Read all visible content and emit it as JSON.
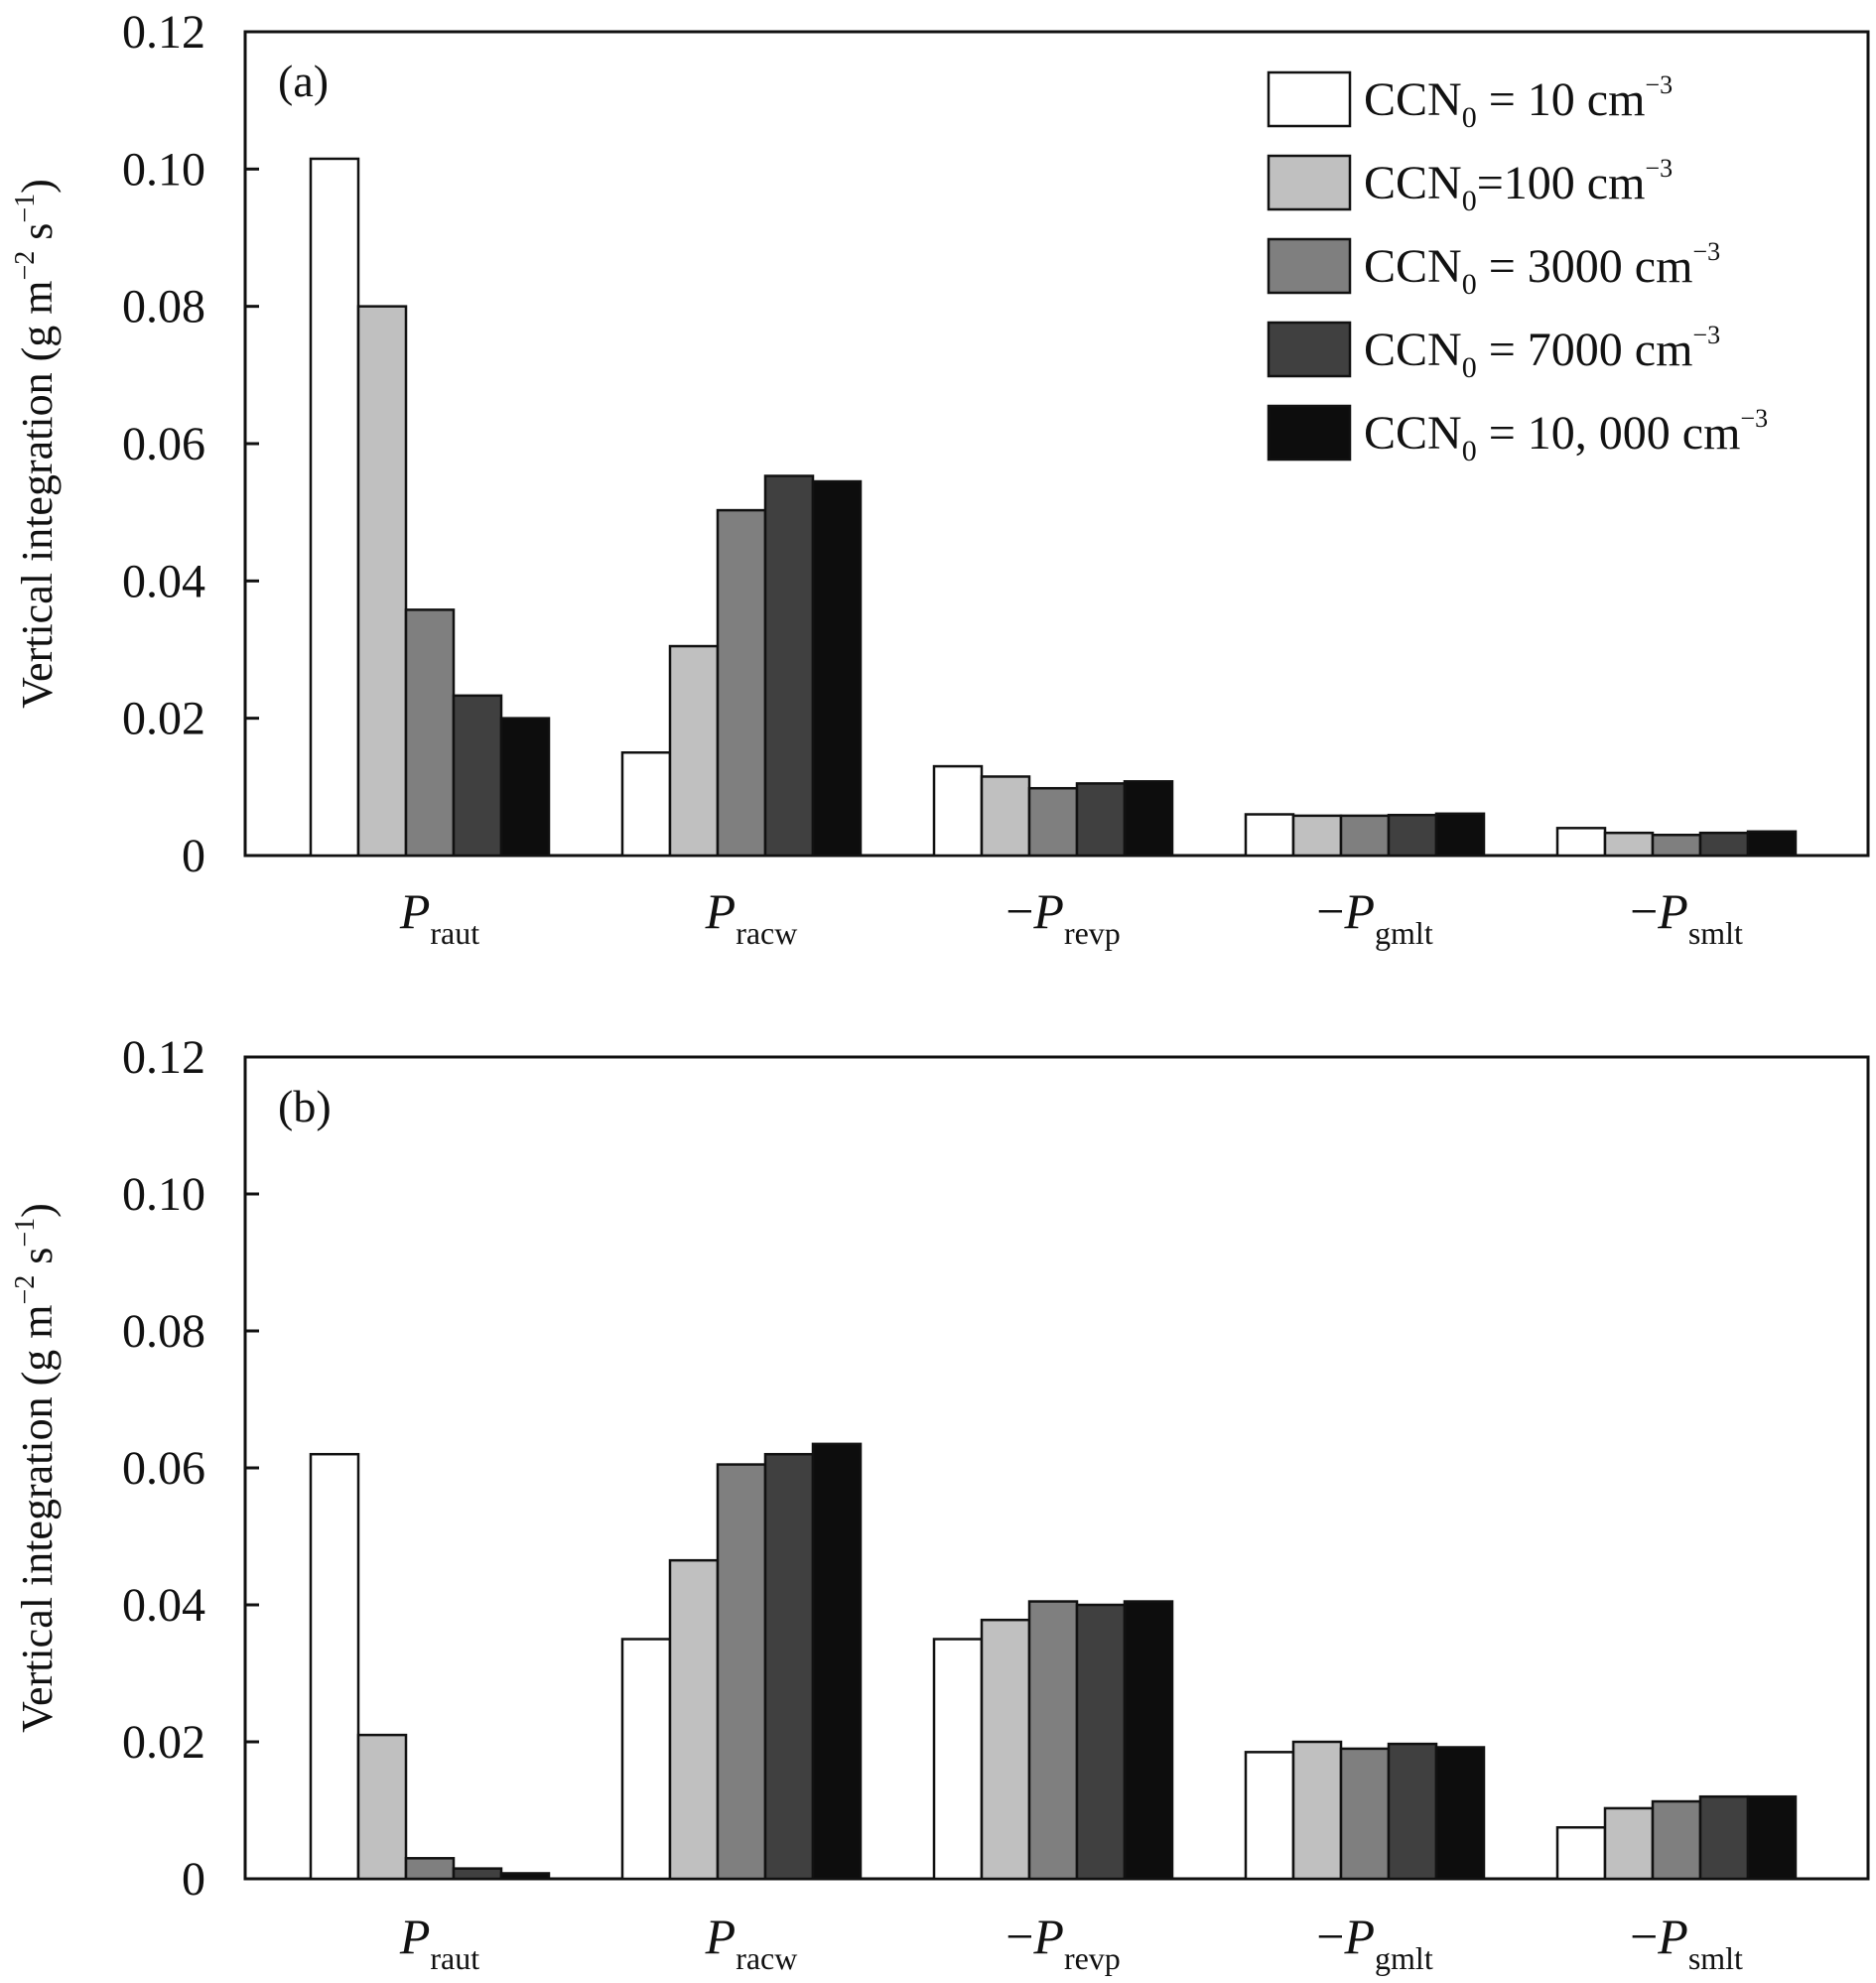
{
  "chart_data": {
    "type": "bar",
    "ylim": [
      0,
      0.12
    ],
    "yticks": [
      "0",
      "0.02",
      "0.04",
      "0.06",
      "0.08",
      "0.10",
      "0.12"
    ],
    "ytick_values": [
      0,
      0.02,
      0.04,
      0.06,
      0.08,
      0.1,
      0.12
    ],
    "ylabel": {
      "main": "Vertical integration (g m",
      "sup1": "−2",
      "mid": " s",
      "sup2": "−1",
      "end": ")"
    },
    "categories": [
      {
        "prefix": "",
        "symbol": "P",
        "sub": "raut"
      },
      {
        "prefix": "",
        "symbol": "P",
        "sub": "racw"
      },
      {
        "prefix": "−",
        "symbol": "P",
        "sub": "revp"
      },
      {
        "prefix": "−",
        "symbol": "P",
        "sub": "gmlt"
      },
      {
        "prefix": "−",
        "symbol": "P",
        "sub": "smlt"
      }
    ],
    "series": [
      {
        "name": "CCN0 = 10 cm−3",
        "legend": {
          "a": "CCN",
          "sub": "0",
          "b": " = 10 cm",
          "sup": "−3"
        },
        "color": "#ffffff"
      },
      {
        "name": "CCN0=100 cm−3",
        "legend": {
          "a": "CCN",
          "sub": "0",
          "b": "=100 cm",
          "sup": "−3"
        },
        "color": "#c0c0c0"
      },
      {
        "name": "CCN0 = 3000 cm−3",
        "legend": {
          "a": "CCN",
          "sub": "0",
          "b": " = 3000 cm",
          "sup": "−3"
        },
        "color": "#7f7f7f"
      },
      {
        "name": "CCN0 = 7000 cm−3",
        "legend": {
          "a": "CCN",
          "sub": "0",
          "b": " = 7000 cm",
          "sup": "−3"
        },
        "color": "#404040"
      },
      {
        "name": "CCN0 = 10, 000 cm−3",
        "legend": {
          "a": "CCN",
          "sub": "0",
          "b": " = 10, 000 cm",
          "sup": "−3"
        },
        "color": "#0d0d0d"
      }
    ],
    "panels": [
      {
        "label": "(a)",
        "values": [
          [
            0.1015,
            0.015,
            0.013,
            0.006,
            0.004
          ],
          [
            0.08,
            0.0305,
            0.0115,
            0.0058,
            0.0033
          ],
          [
            0.0358,
            0.0503,
            0.0098,
            0.0058,
            0.003
          ],
          [
            0.0233,
            0.0553,
            0.0105,
            0.0059,
            0.0033
          ],
          [
            0.02,
            0.0545,
            0.0108,
            0.0061,
            0.0035
          ]
        ]
      },
      {
        "label": "(b)",
        "values": [
          [
            0.062,
            0.035,
            0.035,
            0.0185,
            0.0075
          ],
          [
            0.021,
            0.0465,
            0.0378,
            0.02,
            0.0103
          ],
          [
            0.003,
            0.0605,
            0.0405,
            0.019,
            0.0113
          ],
          [
            0.0015,
            0.062,
            0.04,
            0.0197,
            0.012
          ],
          [
            0.0008,
            0.0635,
            0.0405,
            0.0192,
            0.012
          ]
        ]
      }
    ]
  }
}
